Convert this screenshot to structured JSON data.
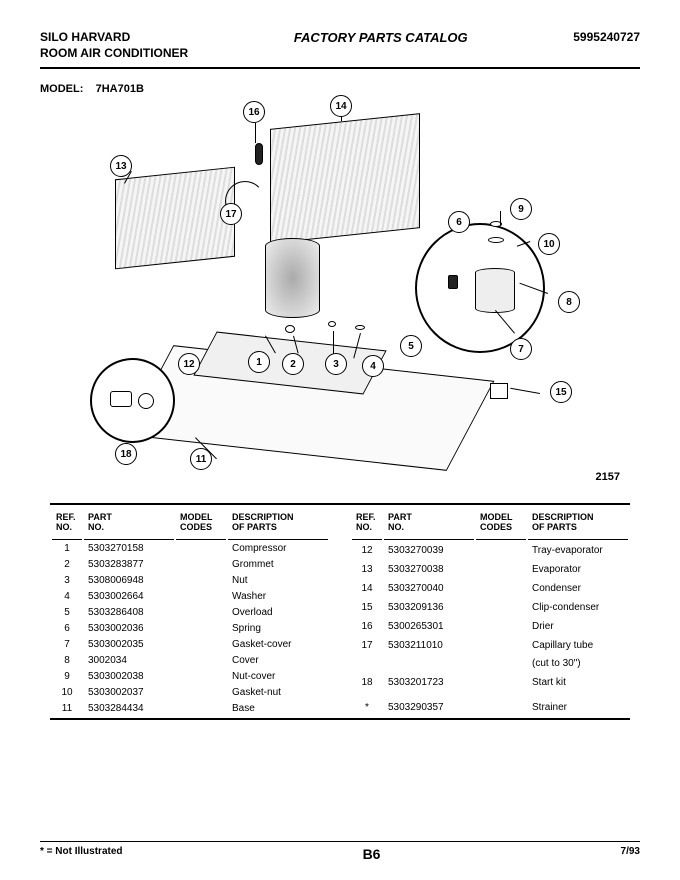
{
  "header": {
    "brand_line1": "SILO HARVARD",
    "brand_line2": "ROOM AIR CONDITIONER",
    "title": "FACTORY PARTS CATALOG",
    "doc_number": "5995240727"
  },
  "model": {
    "label": "MODEL:",
    "value": "7HA701B"
  },
  "figure_number": "2157",
  "callouts": [
    "1",
    "2",
    "3",
    "4",
    "5",
    "6",
    "7",
    "8",
    "9",
    "10",
    "11",
    "12",
    "13",
    "14",
    "15",
    "16",
    "17",
    "18"
  ],
  "table_headers": {
    "ref": "REF.\nNO.",
    "part": "PART\nNO.",
    "model": "MODEL\nCODES",
    "desc": "DESCRIPTION\nOF PARTS"
  },
  "parts_left": [
    {
      "ref": "1",
      "pn": "5303270158",
      "mc": "",
      "desc": "Compressor"
    },
    {
      "ref": "2",
      "pn": "5303283877",
      "mc": "",
      "desc": "Grommet"
    },
    {
      "ref": "3",
      "pn": "5308006948",
      "mc": "",
      "desc": "Nut"
    },
    {
      "ref": "4",
      "pn": "5303002664",
      "mc": "",
      "desc": "Washer"
    },
    {
      "ref": "5",
      "pn": "5303286408",
      "mc": "",
      "desc": "Overload"
    },
    {
      "ref": "6",
      "pn": "5303002036",
      "mc": "",
      "desc": "Spring"
    },
    {
      "ref": "7",
      "pn": "5303002035",
      "mc": "",
      "desc": "Gasket-cover"
    },
    {
      "ref": "8",
      "pn": "3002034",
      "mc": "",
      "desc": "Cover"
    },
    {
      "ref": "9",
      "pn": "5303002038",
      "mc": "",
      "desc": "Nut-cover"
    },
    {
      "ref": "10",
      "pn": "5303002037",
      "mc": "",
      "desc": "Gasket-nut"
    },
    {
      "ref": "11",
      "pn": "5303284434",
      "mc": "",
      "desc": "Base"
    }
  ],
  "parts_right": [
    {
      "ref": "12",
      "pn": "5303270039",
      "mc": "",
      "desc": "Tray-evaporator"
    },
    {
      "ref": "13",
      "pn": "5303270038",
      "mc": "",
      "desc": "Evaporator"
    },
    {
      "ref": "14",
      "pn": "5303270040",
      "mc": "",
      "desc": "Condenser"
    },
    {
      "ref": "15",
      "pn": "5303209136",
      "mc": "",
      "desc": "Clip-condenser"
    },
    {
      "ref": "16",
      "pn": "5300265301",
      "mc": "",
      "desc": "Drier"
    },
    {
      "ref": "17",
      "pn": "5303211010",
      "mc": "",
      "desc": "Capillary tube"
    },
    {
      "ref": "",
      "pn": "",
      "mc": "",
      "desc": "(cut to 30\")"
    },
    {
      "ref": "18",
      "pn": "5303201723",
      "mc": "",
      "desc": "Start kit"
    },
    {
      "ref": "",
      "pn": "",
      "mc": "",
      "desc": ""
    },
    {
      "ref": "*",
      "pn": "5303290357",
      "mc": "",
      "desc": "Strainer"
    }
  ],
  "footer": {
    "note": "* = Not Illustrated",
    "page": "B6",
    "date": "7/93"
  }
}
